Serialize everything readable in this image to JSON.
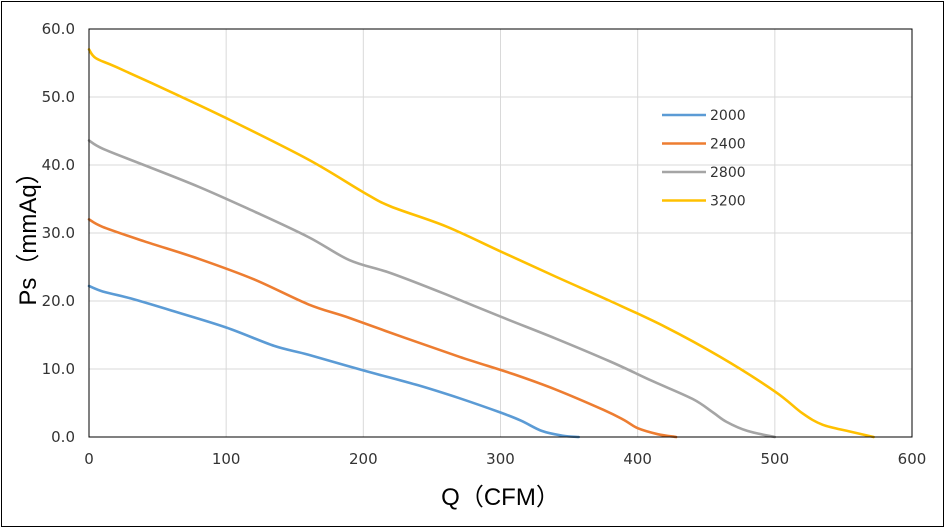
{
  "chart_data": {
    "type": "line",
    "title": "",
    "xlabel": "Q（CFM）",
    "ylabel": "Ps（mmAq）",
    "xlim": [
      0,
      600
    ],
    "ylim": [
      0,
      60
    ],
    "x_ticks": [
      "0",
      "100",
      "200",
      "300",
      "400",
      "500",
      "600"
    ],
    "y_ticks": [
      "0.0",
      "10.0",
      "20.0",
      "30.0",
      "40.0",
      "50.0",
      "60.0"
    ],
    "grid": true,
    "legend_position": "right",
    "series": [
      {
        "name": "2000",
        "color": "#5B9BD5",
        "points": [
          [
            0,
            22.2
          ],
          [
            10,
            21.4
          ],
          [
            30,
            20.4
          ],
          [
            60,
            18.6
          ],
          [
            100,
            16.1
          ],
          [
            135,
            13.4
          ],
          [
            160,
            12.1
          ],
          [
            200,
            9.8
          ],
          [
            240,
            7.6
          ],
          [
            270,
            5.7
          ],
          [
            300,
            3.6
          ],
          [
            315,
            2.4
          ],
          [
            330,
            0.9
          ],
          [
            345,
            0.2
          ],
          [
            357,
            0
          ]
        ]
      },
      {
        "name": "2400",
        "color": "#ED7D31",
        "points": [
          [
            0,
            32.0
          ],
          [
            10,
            30.9
          ],
          [
            40,
            28.8
          ],
          [
            80,
            26.2
          ],
          [
            120,
            23.2
          ],
          [
            160,
            19.5
          ],
          [
            190,
            17.5
          ],
          [
            230,
            14.6
          ],
          [
            270,
            11.8
          ],
          [
            310,
            9.2
          ],
          [
            340,
            7.0
          ],
          [
            375,
            4.0
          ],
          [
            390,
            2.5
          ],
          [
            400,
            1.3
          ],
          [
            415,
            0.4
          ],
          [
            428,
            0
          ]
        ]
      },
      {
        "name": "2800",
        "color": "#A5A5A5",
        "points": [
          [
            0,
            43.6
          ],
          [
            10,
            42.4
          ],
          [
            40,
            40.0
          ],
          [
            80,
            36.8
          ],
          [
            120,
            33.2
          ],
          [
            160,
            29.4
          ],
          [
            190,
            26.0
          ],
          [
            220,
            24.1
          ],
          [
            260,
            21.0
          ],
          [
            300,
            17.7
          ],
          [
            340,
            14.5
          ],
          [
            380,
            11.1
          ],
          [
            410,
            8.3
          ],
          [
            440,
            5.6
          ],
          [
            455,
            3.6
          ],
          [
            465,
            2.2
          ],
          [
            480,
            0.9
          ],
          [
            500,
            0
          ]
        ]
      },
      {
        "name": "3200",
        "color": "#FFC000",
        "points": [
          [
            0,
            57.0
          ],
          [
            5,
            55.7
          ],
          [
            20,
            54.4
          ],
          [
            60,
            50.7
          ],
          [
            100,
            46.9
          ],
          [
            160,
            40.8
          ],
          [
            200,
            36.0
          ],
          [
            220,
            33.9
          ],
          [
            260,
            31.0
          ],
          [
            300,
            27.3
          ],
          [
            340,
            23.6
          ],
          [
            380,
            20.0
          ],
          [
            420,
            16.2
          ],
          [
            460,
            11.8
          ],
          [
            500,
            6.7
          ],
          [
            520,
            3.5
          ],
          [
            535,
            1.8
          ],
          [
            555,
            0.8
          ],
          [
            572,
            0
          ]
        ]
      }
    ]
  }
}
